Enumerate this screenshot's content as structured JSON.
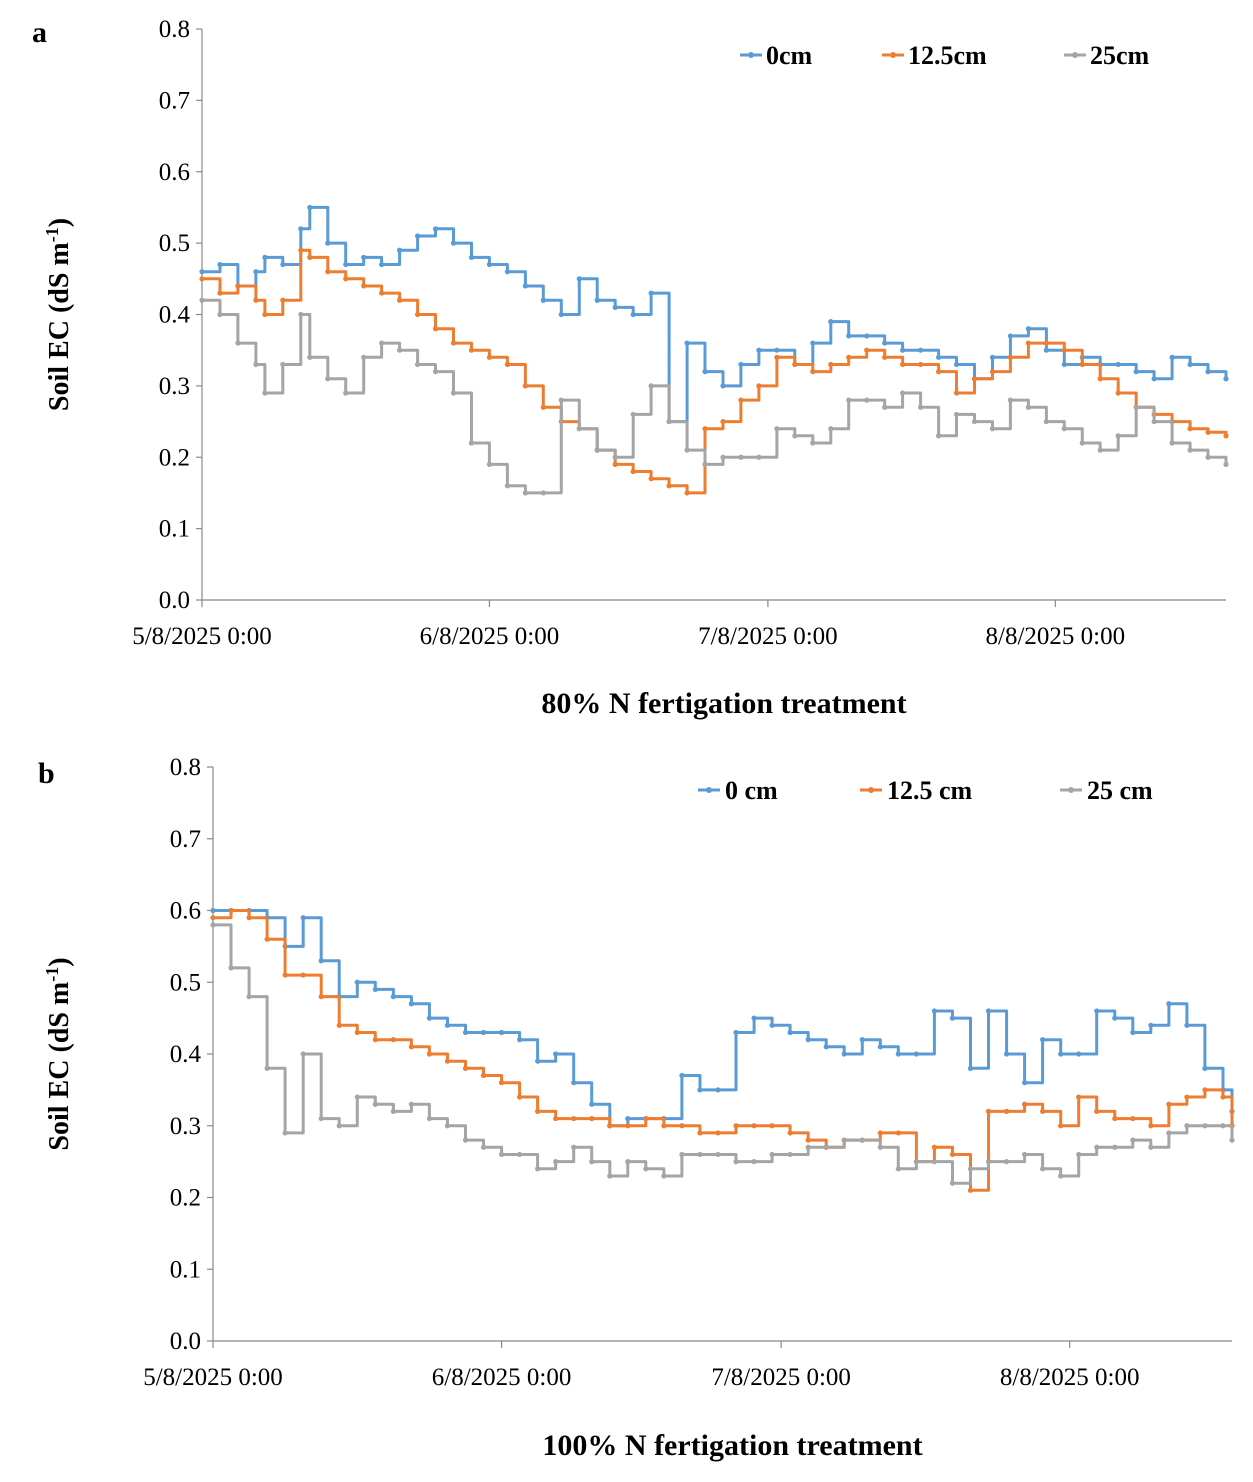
{
  "chart_data": [
    {
      "type": "line",
      "panel_label": "a",
      "title": "",
      "xlabel": "80% N fertigation treatment",
      "ylabel": "Soil EC (dS m",
      "ylabel_sup": "-1",
      "ylabel_close": ")",
      "ylim": [
        0,
        0.8
      ],
      "yticks": [
        "0.0",
        "0.1",
        "0.2",
        "0.3",
        "0.4",
        "0.5",
        "0.6",
        "0.7",
        "0.8"
      ],
      "xlim": [
        0,
        114
      ],
      "xtick_days": [
        0,
        32,
        63,
        95
      ],
      "xticks": [
        "5/8/2025 0:00",
        "6/8/2025 0:00",
        "7/8/2025 0:00",
        "8/8/2025 0:00"
      ],
      "legend_position": "top-right",
      "series": [
        {
          "name": "0cm",
          "color": "#5b9bd5",
          "x": [
            0,
            2,
            4,
            6,
            7,
            9,
            11,
            12,
            14,
            16,
            18,
            20,
            22,
            24,
            26,
            28,
            30,
            32,
            34,
            36,
            38,
            40,
            42,
            44,
            46,
            48,
            50,
            52,
            54,
            56,
            58,
            60,
            62,
            64,
            66,
            68,
            70,
            72,
            74,
            76,
            78,
            80,
            82,
            84,
            86,
            88,
            90,
            92,
            94,
            96,
            98,
            100,
            102,
            104,
            106,
            108,
            110,
            112,
            114
          ],
          "y": [
            0.46,
            0.47,
            0.44,
            0.46,
            0.48,
            0.47,
            0.52,
            0.55,
            0.5,
            0.47,
            0.48,
            0.47,
            0.49,
            0.51,
            0.52,
            0.5,
            0.48,
            0.47,
            0.46,
            0.44,
            0.42,
            0.4,
            0.45,
            0.42,
            0.41,
            0.4,
            0.43,
            0.25,
            0.36,
            0.32,
            0.3,
            0.33,
            0.35,
            0.35,
            0.33,
            0.36,
            0.39,
            0.37,
            0.37,
            0.36,
            0.35,
            0.35,
            0.34,
            0.33,
            0.31,
            0.34,
            0.37,
            0.38,
            0.35,
            0.33,
            0.34,
            0.33,
            0.33,
            0.32,
            0.31,
            0.34,
            0.33,
            0.32,
            0.31
          ]
        },
        {
          "name": "12.5cm",
          "color": "#ed7d31",
          "x": [
            0,
            2,
            4,
            6,
            7,
            9,
            11,
            12,
            14,
            16,
            18,
            20,
            22,
            24,
            26,
            28,
            30,
            32,
            34,
            36,
            38,
            40,
            42,
            44,
            46,
            48,
            50,
            52,
            54,
            56,
            58,
            60,
            62,
            64,
            66,
            68,
            70,
            72,
            74,
            76,
            78,
            80,
            82,
            84,
            86,
            88,
            90,
            92,
            94,
            96,
            98,
            100,
            102,
            104,
            106,
            108,
            110,
            112,
            114
          ],
          "y": [
            0.45,
            0.43,
            0.44,
            0.42,
            0.4,
            0.42,
            0.49,
            0.48,
            0.46,
            0.45,
            0.44,
            0.43,
            0.42,
            0.4,
            0.38,
            0.36,
            0.35,
            0.34,
            0.33,
            0.3,
            0.27,
            0.25,
            0.24,
            0.21,
            0.19,
            0.18,
            0.17,
            0.16,
            0.15,
            0.24,
            0.25,
            0.28,
            0.3,
            0.34,
            0.33,
            0.32,
            0.33,
            0.34,
            0.35,
            0.34,
            0.33,
            0.33,
            0.32,
            0.29,
            0.31,
            0.32,
            0.34,
            0.36,
            0.36,
            0.35,
            0.33,
            0.31,
            0.29,
            0.27,
            0.26,
            0.25,
            0.24,
            0.235,
            0.23
          ]
        },
        {
          "name": "25cm",
          "color": "#a5a5a5",
          "x": [
            0,
            2,
            4,
            6,
            7,
            9,
            11,
            12,
            14,
            16,
            18,
            20,
            22,
            24,
            26,
            28,
            30,
            32,
            34,
            36,
            38,
            40,
            42,
            44,
            46,
            48,
            50,
            52,
            54,
            56,
            58,
            60,
            62,
            64,
            66,
            68,
            70,
            72,
            74,
            76,
            78,
            80,
            82,
            84,
            86,
            88,
            90,
            92,
            94,
            96,
            98,
            100,
            102,
            104,
            106,
            108,
            110,
            112,
            114
          ],
          "y": [
            0.42,
            0.4,
            0.36,
            0.33,
            0.29,
            0.33,
            0.4,
            0.34,
            0.31,
            0.29,
            0.34,
            0.36,
            0.35,
            0.33,
            0.32,
            0.29,
            0.22,
            0.19,
            0.16,
            0.15,
            0.15,
            0.28,
            0.24,
            0.21,
            0.2,
            0.26,
            0.3,
            0.25,
            0.21,
            0.19,
            0.2,
            0.2,
            0.2,
            0.24,
            0.23,
            0.22,
            0.24,
            0.28,
            0.28,
            0.27,
            0.29,
            0.27,
            0.23,
            0.26,
            0.25,
            0.24,
            0.28,
            0.27,
            0.25,
            0.24,
            0.22,
            0.21,
            0.23,
            0.27,
            0.25,
            0.22,
            0.21,
            0.2,
            0.19
          ]
        }
      ]
    },
    {
      "type": "line",
      "panel_label": "b",
      "title": "",
      "xlabel": "100% N fertigation treatment",
      "ylabel": "Soil EC (dS m",
      "ylabel_sup": "-1",
      "ylabel_close": ")",
      "ylim": [
        0,
        0.8
      ],
      "yticks": [
        "0.0",
        "0.1",
        "0.2",
        "0.3",
        "0.4",
        "0.5",
        "0.6",
        "0.7",
        "0.8"
      ],
      "xlim": [
        0,
        113
      ],
      "xtick_days": [
        0,
        32,
        63,
        95
      ],
      "xticks": [
        "5/8/2025 0:00",
        "6/8/2025 0:00",
        "7/8/2025 0:00",
        "8/8/2025 0:00"
      ],
      "legend_position": "top-right",
      "series": [
        {
          "name": "0 cm",
          "color": "#5b9bd5",
          "x": [
            0,
            2,
            4,
            6,
            8,
            10,
            12,
            14,
            16,
            18,
            20,
            22,
            24,
            26,
            28,
            30,
            32,
            34,
            36,
            38,
            40,
            42,
            44,
            46,
            48,
            50,
            52,
            54,
            56,
            58,
            60,
            62,
            64,
            66,
            68,
            70,
            72,
            74,
            76,
            78,
            80,
            82,
            84,
            86,
            88,
            90,
            92,
            94,
            96,
            98,
            100,
            102,
            104,
            106,
            108,
            110,
            112,
            113
          ],
          "y": [
            0.6,
            0.6,
            0.6,
            0.59,
            0.55,
            0.59,
            0.53,
            0.48,
            0.5,
            0.49,
            0.48,
            0.47,
            0.45,
            0.44,
            0.43,
            0.43,
            0.43,
            0.42,
            0.39,
            0.4,
            0.36,
            0.33,
            0.3,
            0.31,
            0.31,
            0.31,
            0.37,
            0.35,
            0.35,
            0.43,
            0.45,
            0.44,
            0.43,
            0.42,
            0.41,
            0.4,
            0.42,
            0.41,
            0.4,
            0.4,
            0.46,
            0.45,
            0.38,
            0.46,
            0.4,
            0.36,
            0.42,
            0.4,
            0.4,
            0.46,
            0.45,
            0.43,
            0.44,
            0.47,
            0.44,
            0.38,
            0.35,
            0.32
          ]
        },
        {
          "name": "12.5 cm",
          "color": "#ed7d31",
          "x": [
            0,
            2,
            4,
            6,
            8,
            10,
            12,
            14,
            16,
            18,
            20,
            22,
            24,
            26,
            28,
            30,
            32,
            34,
            36,
            38,
            40,
            42,
            44,
            46,
            48,
            50,
            52,
            54,
            56,
            58,
            60,
            62,
            64,
            66,
            68,
            70,
            72,
            74,
            76,
            78,
            80,
            82,
            84,
            86,
            88,
            90,
            92,
            94,
            96,
            98,
            100,
            102,
            104,
            106,
            108,
            110,
            112,
            113
          ],
          "y": [
            0.59,
            0.6,
            0.59,
            0.56,
            0.51,
            0.51,
            0.48,
            0.44,
            0.43,
            0.42,
            0.42,
            0.41,
            0.4,
            0.39,
            0.38,
            0.37,
            0.36,
            0.34,
            0.32,
            0.31,
            0.31,
            0.31,
            0.3,
            0.3,
            0.31,
            0.3,
            0.3,
            0.29,
            0.29,
            0.3,
            0.3,
            0.3,
            0.29,
            0.28,
            0.27,
            0.28,
            0.28,
            0.29,
            0.29,
            0.25,
            0.27,
            0.26,
            0.21,
            0.32,
            0.32,
            0.33,
            0.32,
            0.3,
            0.34,
            0.32,
            0.31,
            0.31,
            0.3,
            0.33,
            0.34,
            0.35,
            0.34,
            0.3
          ]
        },
        {
          "name": "25 cm",
          "color": "#a5a5a5",
          "x": [
            0,
            2,
            4,
            6,
            8,
            10,
            12,
            14,
            16,
            18,
            20,
            22,
            24,
            26,
            28,
            30,
            32,
            34,
            36,
            38,
            40,
            42,
            44,
            46,
            48,
            50,
            52,
            54,
            56,
            58,
            60,
            62,
            64,
            66,
            68,
            70,
            72,
            74,
            76,
            78,
            80,
            82,
            84,
            86,
            88,
            90,
            92,
            94,
            96,
            98,
            100,
            102,
            104,
            106,
            108,
            110,
            112,
            113
          ],
          "y": [
            0.58,
            0.52,
            0.48,
            0.38,
            0.29,
            0.4,
            0.31,
            0.3,
            0.34,
            0.33,
            0.32,
            0.33,
            0.31,
            0.3,
            0.28,
            0.27,
            0.26,
            0.26,
            0.24,
            0.25,
            0.27,
            0.25,
            0.23,
            0.25,
            0.24,
            0.23,
            0.26,
            0.26,
            0.26,
            0.25,
            0.25,
            0.26,
            0.26,
            0.27,
            0.27,
            0.28,
            0.28,
            0.27,
            0.24,
            0.25,
            0.25,
            0.22,
            0.24,
            0.25,
            0.25,
            0.26,
            0.24,
            0.23,
            0.26,
            0.27,
            0.27,
            0.28,
            0.27,
            0.29,
            0.3,
            0.3,
            0.3,
            0.28
          ]
        }
      ]
    }
  ]
}
